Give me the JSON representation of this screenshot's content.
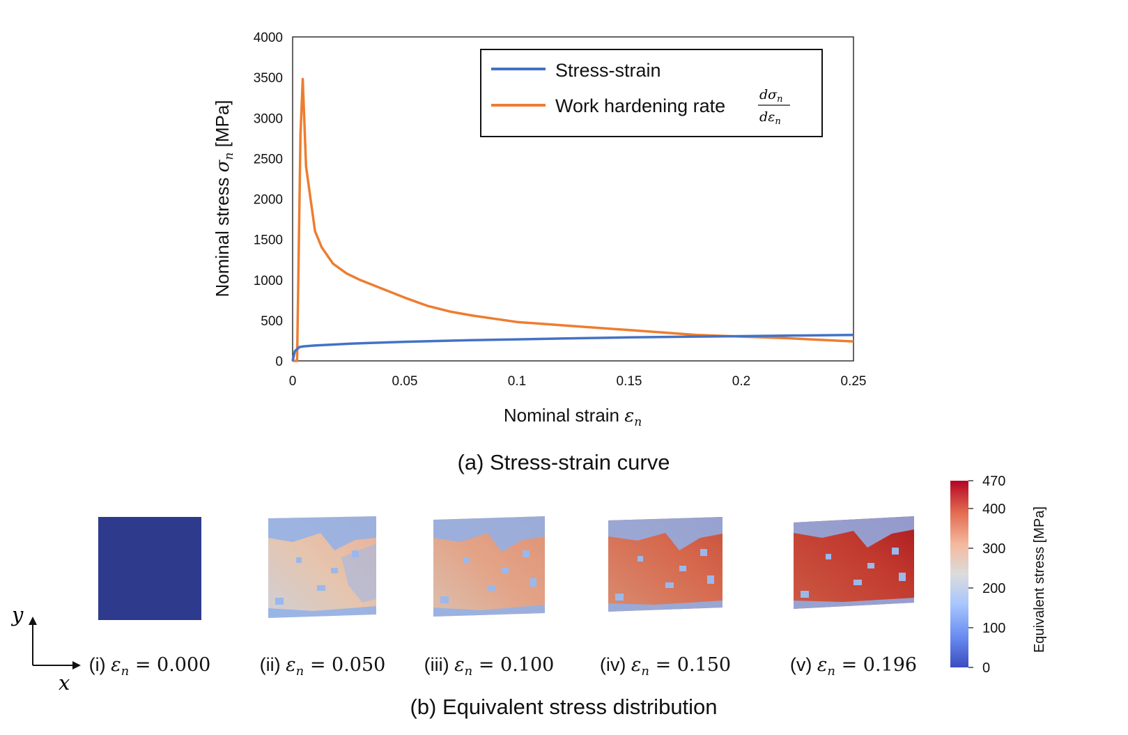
{
  "chart_data": {
    "type": "line",
    "title": "",
    "caption": "(a) Stress-strain curve",
    "xlabel": "Nominal strain",
    "xlabel_symbol": "ε",
    "xlabel_sub": "n",
    "ylabel": "Nominal stress",
    "ylabel_symbol": "σ",
    "ylabel_sub": "n",
    "ylabel_unit": "[MPa]",
    "xlim": [
      0,
      0.25
    ],
    "ylim": [
      0,
      4000
    ],
    "xticks": [
      "0",
      "0.05",
      "0.1",
      "0.15",
      "0.2",
      "0.25"
    ],
    "xtick_values": [
      0,
      0.05,
      0.1,
      0.15,
      0.2,
      0.25
    ],
    "yticks": [
      "0",
      "500",
      "1000",
      "1500",
      "2000",
      "2500",
      "3000",
      "3500",
      "4000"
    ],
    "ytick_values": [
      0,
      500,
      1000,
      1500,
      2000,
      2500,
      3000,
      3500,
      4000
    ],
    "grid": false,
    "legend_position": "top-right",
    "series": [
      {
        "name": "Stress-strain",
        "color": "#4472c4",
        "x": [
          0,
          0.001,
          0.003,
          0.005,
          0.01,
          0.02,
          0.03,
          0.05,
          0.08,
          0.1,
          0.12,
          0.15,
          0.18,
          0.2,
          0.22,
          0.25
        ],
        "y": [
          0,
          120,
          170,
          180,
          190,
          205,
          218,
          236,
          256,
          266,
          276,
          290,
          300,
          305,
          312,
          320
        ]
      },
      {
        "name": "Work hardening rate",
        "legend_fraction_num": "dσ",
        "legend_fraction_den": "dε",
        "legend_sub": "n",
        "color": "#ed7d31",
        "x": [
          0,
          0.002,
          0.0035,
          0.0045,
          0.006,
          0.0075,
          0.01,
          0.013,
          0.018,
          0.024,
          0.03,
          0.04,
          0.05,
          0.06,
          0.07,
          0.08,
          0.1,
          0.12,
          0.15,
          0.18,
          0.2,
          0.22,
          0.25
        ],
        "y": [
          0,
          0,
          2800,
          3480,
          2400,
          2100,
          1600,
          1400,
          1200,
          1080,
          1000,
          890,
          780,
          680,
          610,
          560,
          480,
          440,
          380,
          320,
          300,
          280,
          240
        ]
      }
    ]
  },
  "panel_b": {
    "caption": "(b) Equivalent stress distribution",
    "axes": {
      "y_label": "y",
      "x_label": "x"
    },
    "panels": [
      {
        "label_prefix": "(i)",
        "symbol": "ε",
        "sub": "n",
        "value": "= 0.000"
      },
      {
        "label_prefix": "(ii)",
        "symbol": "ε",
        "sub": "n",
        "value": "= 0.050"
      },
      {
        "label_prefix": "(iii)",
        "symbol": "ε",
        "sub": "n",
        "value": "= 0.100"
      },
      {
        "label_prefix": "(iv)",
        "symbol": "ε",
        "sub": "n",
        "value": "= 0.150"
      },
      {
        "label_prefix": "(v)",
        "symbol": "ε",
        "sub": "n",
        "value": "= 0.196"
      }
    ],
    "colorbar": {
      "label": "Equivalent stress [MPa]",
      "min": 0,
      "max": 470,
      "ticks": [
        "0",
        "100",
        "200",
        "300",
        "400",
        "470"
      ],
      "tick_values": [
        0,
        100,
        200,
        300,
        400,
        470
      ],
      "colormap": [
        "#3b4cc0",
        "#7396f5",
        "#b0cbfc",
        "#dddcdc",
        "#f6b89c",
        "#e7745b",
        "#b40426"
      ]
    },
    "initial_color": "#2e3a8c"
  }
}
